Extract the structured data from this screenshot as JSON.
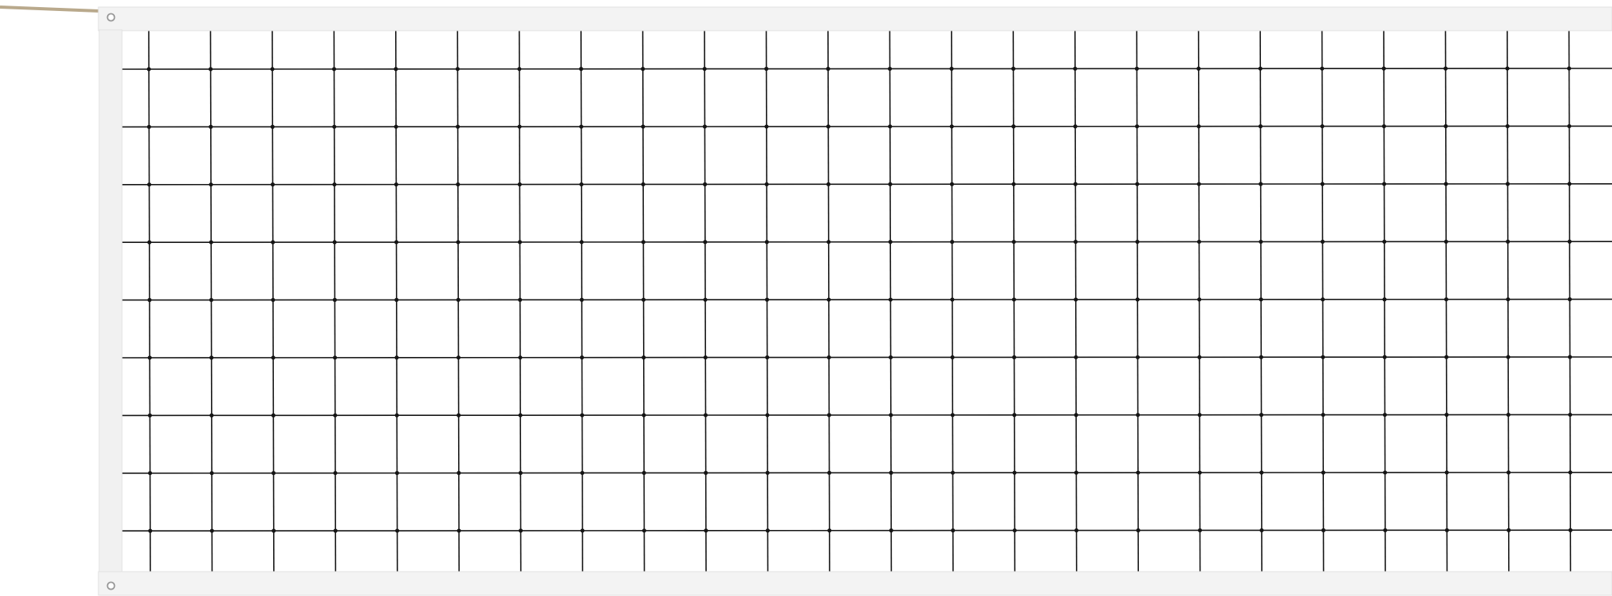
{
  "scene": {
    "subject": "volleyball-net",
    "colors": {
      "background": "#ffffff",
      "band": "#f3f3f3",
      "band_shadow": "#e2e2e2",
      "mesh": "#151515",
      "rope": "#b9a98c",
      "grommet": "#9a9a9a"
    },
    "mesh_columns": 24,
    "mesh_rows": 9
  }
}
